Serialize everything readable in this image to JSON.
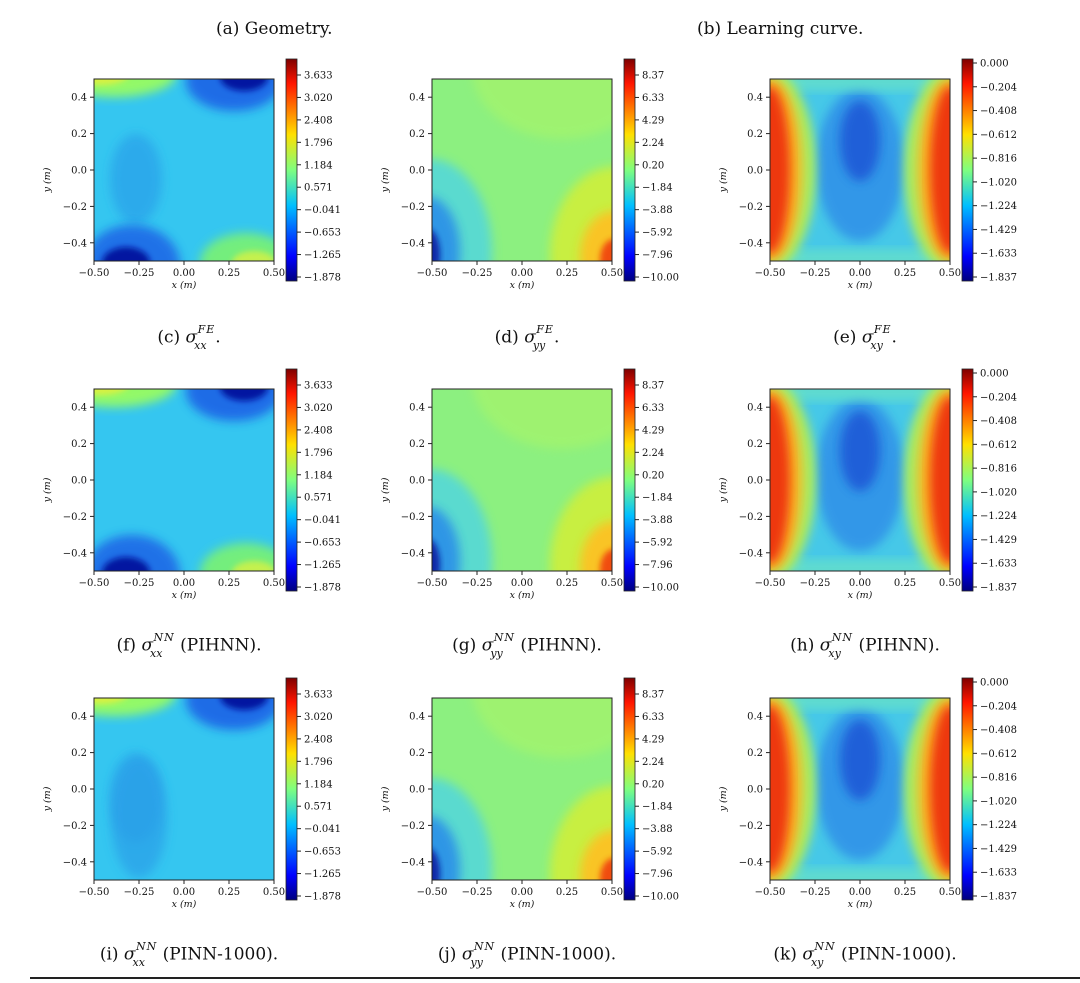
{
  "top_titles": {
    "a": "(a) Geometry.",
    "b": "(b) Learning curve."
  },
  "axis_common": {
    "x_ticks": [
      "−0.50",
      "−0.25",
      "0.00",
      "0.25",
      "0.50"
    ],
    "y_ticks": [
      "0.4",
      "0.2",
      "0.0",
      "−0.2",
      "−0.4"
    ],
    "xlabel": "x (m)",
    "ylabel": "y (m)"
  },
  "colorbars": {
    "xx": [
      "3.633",
      "3.020",
      "2.408",
      "1.796",
      "1.184",
      "0.571",
      "−0.041",
      "−0.653",
      "−1.265",
      "−1.878"
    ],
    "yy": [
      "8.37",
      "6.33",
      "4.29",
      "2.24",
      "0.20",
      "−1.84",
      "−3.88",
      "−5.92",
      "−7.96",
      "−10.00"
    ],
    "xy": [
      "0.000",
      "−0.204",
      "−0.408",
      "−0.612",
      "−0.816",
      "−1.020",
      "−1.224",
      "−1.429",
      "−1.633",
      "−1.837"
    ]
  },
  "colormap": "jet",
  "captions": {
    "c": {
      "label": "(c)",
      "sub": "xx",
      "sup": "FE",
      "suffix": "."
    },
    "d": {
      "label": "(d)",
      "sub": "yy",
      "sup": "FE",
      "suffix": "."
    },
    "e": {
      "label": "(e)",
      "sub": "xy",
      "sup": "FE",
      "suffix": "."
    },
    "f": {
      "label": "(f)",
      "sub": "xx",
      "sup": "NN",
      "suffix": " (PIHNN)."
    },
    "g": {
      "label": "(g)",
      "sub": "yy",
      "sup": "NN",
      "suffix": " (PIHNN)."
    },
    "h": {
      "label": "(h)",
      "sub": "xy",
      "sup": "NN",
      "suffix": " (PIHNN)."
    },
    "i": {
      "label": "(i)",
      "sub": "xx",
      "sup": "NN",
      "suffix": " (PINN-1000)."
    },
    "j": {
      "label": "(j)",
      "sub": "yy",
      "sup": "NN",
      "suffix": " (PINN-1000)."
    },
    "k": {
      "label": "(k)",
      "sub": "xy",
      "sup": "NN",
      "suffix": " (PINN-1000)."
    }
  },
  "sigma": "σ",
  "chart_data": [
    {
      "type": "heatmap",
      "panel": "c",
      "field": "sigma_xx FE",
      "xlim": [
        -0.5,
        0.5
      ],
      "ylim": [
        -0.5,
        0.5
      ],
      "colorbar_range": [
        -1.878,
        3.633
      ],
      "colormap": "jet"
    },
    {
      "type": "heatmap",
      "panel": "d",
      "field": "sigma_yy FE",
      "xlim": [
        -0.5,
        0.5
      ],
      "ylim": [
        -0.5,
        0.5
      ],
      "colorbar_range": [
        -10.0,
        8.37
      ],
      "colormap": "jet"
    },
    {
      "type": "heatmap",
      "panel": "e",
      "field": "sigma_xy FE",
      "xlim": [
        -0.5,
        0.5
      ],
      "ylim": [
        -0.5,
        0.5
      ],
      "colorbar_range": [
        -1.837,
        0.0
      ],
      "colormap": "jet"
    },
    {
      "type": "heatmap",
      "panel": "f",
      "field": "sigma_xx NN (PIHNN)",
      "xlim": [
        -0.5,
        0.5
      ],
      "ylim": [
        -0.5,
        0.5
      ],
      "colorbar_range": [
        -1.878,
        3.633
      ],
      "colormap": "jet"
    },
    {
      "type": "heatmap",
      "panel": "g",
      "field": "sigma_yy NN (PIHNN)",
      "xlim": [
        -0.5,
        0.5
      ],
      "ylim": [
        -0.5,
        0.5
      ],
      "colorbar_range": [
        -10.0,
        8.37
      ],
      "colormap": "jet"
    },
    {
      "type": "heatmap",
      "panel": "h",
      "field": "sigma_xy NN (PIHNN)",
      "xlim": [
        -0.5,
        0.5
      ],
      "ylim": [
        -0.5,
        0.5
      ],
      "colorbar_range": [
        -1.837,
        0.0
      ],
      "colormap": "jet"
    },
    {
      "type": "heatmap",
      "panel": "i",
      "field": "sigma_xx NN (PINN-1000)",
      "xlim": [
        -0.5,
        0.5
      ],
      "ylim": [
        -0.5,
        0.5
      ],
      "colorbar_range": [
        -1.878,
        3.633
      ],
      "colormap": "jet"
    },
    {
      "type": "heatmap",
      "panel": "j",
      "field": "sigma_yy NN (PINN-1000)",
      "xlim": [
        -0.5,
        0.5
      ],
      "ylim": [
        -0.5,
        0.5
      ],
      "colorbar_range": [
        -10.0,
        8.37
      ],
      "colormap": "jet"
    },
    {
      "type": "heatmap",
      "panel": "k",
      "field": "sigma_xy NN (PINN-1000)",
      "xlim": [
        -0.5,
        0.5
      ],
      "ylim": [
        -0.5,
        0.5
      ],
      "colorbar_range": [
        -1.837,
        0.0
      ],
      "colormap": "jet"
    }
  ]
}
